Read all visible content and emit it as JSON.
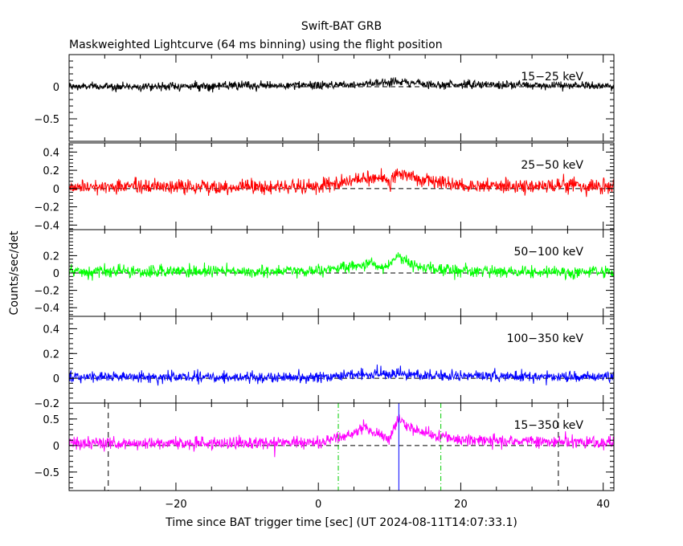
{
  "figure": {
    "title": "Swift-BAT GRB",
    "subtitle": "Maskweighted Lightcurve (64 ms binning) using the flight position",
    "xlabel": "Time since BAT trigger time [sec] (UT 2024-08-11T14:07:33.1)",
    "ylabel": "Counts/sec/det"
  },
  "chart_data": [
    {
      "type": "line",
      "series_label": "15-25 keV",
      "color": "#000000",
      "xlim": [
        -35,
        41.5
      ],
      "ylim": [
        -0.85,
        0.5
      ],
      "xticks": [
        -20,
        0,
        20,
        40
      ],
      "yticks": [
        0,
        -0.5
      ],
      "ytick_labels": [
        "0",
        "−0.5"
      ],
      "noise_sd": 0.032,
      "profile": [
        [
          -35,
          0
        ],
        [
          0,
          0.02
        ],
        [
          5,
          0.04
        ],
        [
          11.3,
          0.08
        ],
        [
          15,
          0.04
        ],
        [
          25,
          0.03
        ],
        [
          41.5,
          0.01
        ]
      ]
    },
    {
      "type": "line",
      "series_label": "25-50 keV",
      "color": "#ff0000",
      "xlim": [
        -35,
        41.5
      ],
      "ylim": [
        -0.45,
        0.5
      ],
      "xticks": [
        -20,
        0,
        20,
        40
      ],
      "yticks": [
        0.4,
        0.2,
        0,
        -0.2,
        -0.4
      ],
      "ytick_labels": [
        "0.4",
        "0.2",
        "0",
        "−0.2",
        "−0.4"
      ],
      "noise_sd": 0.04,
      "profile": [
        [
          -35,
          0.02
        ],
        [
          0,
          0.02
        ],
        [
          3,
          0.07
        ],
        [
          6,
          0.1
        ],
        [
          8,
          0.12
        ],
        [
          10,
          0.06
        ],
        [
          11.3,
          0.18
        ],
        [
          13,
          0.12
        ],
        [
          16,
          0.07
        ],
        [
          22,
          0.02
        ],
        [
          30,
          0.04
        ],
        [
          41.5,
          0.02
        ]
      ]
    },
    {
      "type": "line",
      "series_label": "50-100 keV",
      "color": "#00ff00",
      "xlim": [
        -35,
        41.5
      ],
      "ylim": [
        -0.5,
        0.5
      ],
      "xticks": [
        -20,
        0,
        20,
        40
      ],
      "yticks": [
        0.2,
        0,
        -0.2,
        -0.4
      ],
      "ytick_labels": [
        "0.2",
        "0",
        "−0.2",
        "−0.4"
      ],
      "noise_sd": 0.035,
      "profile": [
        [
          -35,
          0.01
        ],
        [
          0,
          0.02
        ],
        [
          3,
          0.06
        ],
        [
          6,
          0.08
        ],
        [
          7.5,
          0.12
        ],
        [
          9,
          0.05
        ],
        [
          11.3,
          0.2
        ],
        [
          13,
          0.09
        ],
        [
          16,
          0.05
        ],
        [
          22,
          0.02
        ],
        [
          41.5,
          0.01
        ]
      ]
    },
    {
      "type": "line",
      "series_label": "100-350 keV",
      "color": "#0000ff",
      "xlim": [
        -35,
        41.5
      ],
      "ylim": [
        -0.2,
        0.5
      ],
      "xticks": [
        -20,
        0,
        20,
        40
      ],
      "yticks": [
        0.4,
        0.2,
        0,
        -0.2
      ],
      "ytick_labels": [
        "0.4",
        "0.2",
        "0",
        "−0.2"
      ],
      "noise_sd": 0.022,
      "profile": [
        [
          -35,
          0.01
        ],
        [
          0,
          0.01
        ],
        [
          7,
          0.03
        ],
        [
          11.3,
          0.04
        ],
        [
          15,
          0.02
        ],
        [
          41.5,
          0.01
        ]
      ]
    },
    {
      "type": "line",
      "series_label": "15-350 keV",
      "color": "#ff00ff",
      "xlim": [
        -35,
        41.5
      ],
      "ylim": [
        -0.85,
        0.8
      ],
      "xticks": [
        -20,
        0,
        20,
        40
      ],
      "yticks": [
        0.5,
        0,
        -0.5
      ],
      "ytick_labels": [
        "0.5",
        "0",
        "−0.5"
      ],
      "noise_sd": 0.06,
      "profile": [
        [
          -35,
          0.04
        ],
        [
          0,
          0.05
        ],
        [
          3,
          0.15
        ],
        [
          5,
          0.2
        ],
        [
          6,
          0.35
        ],
        [
          8,
          0.25
        ],
        [
          10,
          0.15
        ],
        [
          11.3,
          0.5
        ],
        [
          13,
          0.3
        ],
        [
          16,
          0.2
        ],
        [
          20,
          0.1
        ],
        [
          41.5,
          0.05
        ]
      ],
      "vlines": [
        {
          "x": -29.5,
          "color": "#000000",
          "style": "dashed"
        },
        {
          "x": 2.8,
          "color": "#00cc00",
          "style": "dashdot"
        },
        {
          "x": 11.3,
          "color": "#0000ff",
          "style": "solid"
        },
        {
          "x": 17.2,
          "color": "#00cc00",
          "style": "dashdot"
        },
        {
          "x": 33.7,
          "color": "#000000",
          "style": "dashed"
        }
      ]
    }
  ]
}
